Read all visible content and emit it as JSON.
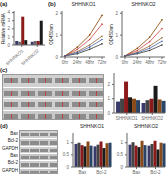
{
  "chart_data": [
    {
      "type": "bar",
      "annotations": [
        "(a)"
      ],
      "ylabel": "Relative mRNA",
      "categories": [
        "SHHNKO1",
        "SHHNKO2"
      ],
      "series": [
        {
          "color": "#3a3a6a",
          "values": [
            0.5,
            0.4
          ]
        },
        {
          "color": "#6a6a6a",
          "values": [
            0.4,
            0.5
          ]
        },
        {
          "color": "#8b1a1a",
          "values": [
            3.5,
            0.5
          ]
        },
        {
          "color": "#1a1a1a",
          "values": [
            0.6,
            3.0
          ]
        }
      ],
      "ylim": [
        0,
        4.2
      ],
      "yticks": [
        0,
        1,
        2,
        3,
        4
      ]
    },
    {
      "type": "line",
      "annotations": [
        "(b)"
      ],
      "title": "SHHNKO1",
      "ylabel": "OD450nm",
      "categories": [
        "0hr",
        "24hr",
        "48hr",
        "72hr"
      ],
      "marker": "circle",
      "series": [
        {
          "color": "#333333",
          "values": [
            0.05,
            0.15,
            0.35,
            0.6
          ]
        },
        {
          "color": "#996633",
          "values": [
            0.05,
            0.25,
            0.55,
            0.95
          ]
        },
        {
          "color": "#cc4444",
          "values": [
            0.05,
            0.35,
            0.8,
            1.5
          ]
        },
        {
          "color": "#884400",
          "values": [
            0.05,
            0.45,
            1.0,
            1.9
          ]
        },
        {
          "color": "#4466aa",
          "values": [
            0.05,
            0.2,
            0.45,
            0.8
          ]
        }
      ],
      "ylim": [
        0,
        2.1
      ],
      "yticks": [
        0,
        1,
        2
      ]
    },
    {
      "type": "line",
      "title": "SHHNKO2",
      "ylabel": "OD450nm",
      "categories": [
        "0hr",
        "24hr",
        "48hr",
        "72hr"
      ],
      "marker": "circle",
      "series": [
        {
          "color": "#333333",
          "values": [
            0.05,
            0.15,
            0.3,
            0.55
          ]
        },
        {
          "color": "#996633",
          "values": [
            0.05,
            0.22,
            0.5,
            0.88
          ]
        },
        {
          "color": "#cc4444",
          "values": [
            0.05,
            0.3,
            0.7,
            1.3
          ]
        },
        {
          "color": "#884400",
          "values": [
            0.05,
            0.4,
            0.9,
            1.7
          ]
        },
        {
          "color": "#4466aa",
          "values": [
            0.05,
            0.18,
            0.4,
            0.72
          ]
        }
      ],
      "ylim": [
        0,
        2.1
      ],
      "yticks": [
        0,
        1,
        2
      ]
    },
    {
      "type": "blot",
      "annotations": [
        "(c)"
      ],
      "rows": 4,
      "columns": 6
    },
    {
      "type": "bar",
      "categories": [
        "SHHNKO1",
        "SHHNKO2"
      ],
      "series": [
        {
          "color": "#3a3a6a",
          "values": [
            0.8,
            0.7
          ]
        },
        {
          "color": "#444444",
          "values": [
            1.0,
            0.9
          ]
        },
        {
          "color": "#8b1a1a",
          "values": [
            2.2,
            1.0
          ]
        },
        {
          "color": "#1a1a1a",
          "values": [
            1.1,
            1.9
          ]
        },
        {
          "color": "#8b4a1a",
          "values": [
            1.0,
            0.95
          ]
        },
        {
          "color": "#2a4466",
          "values": [
            0.9,
            0.85
          ]
        }
      ],
      "ylim": [
        0,
        2.8
      ],
      "yticks": [
        0,
        1,
        2
      ]
    },
    {
      "type": "blot",
      "annotations": [
        "(d)"
      ],
      "row_labels": [
        "Bax",
        "Bcl-2",
        "GAPDH",
        "Bax",
        "Bcl-2",
        "GAPDH"
      ],
      "columns": 4
    },
    {
      "type": "bar",
      "title": "SHHNKO1",
      "categories": [
        "Bax",
        "Bcl-2"
      ],
      "series": [
        {
          "color": "#3a3a6a",
          "values": [
            0.95,
            0.85
          ]
        },
        {
          "color": "#444444",
          "values": [
            1.0,
            0.92
          ]
        },
        {
          "color": "#8b1a1a",
          "values": [
            0.9,
            1.05
          ]
        },
        {
          "color": "#1a1a1a",
          "values": [
            0.85,
            0.78
          ]
        },
        {
          "color": "#8b4a1a",
          "values": [
            1.05,
            0.98
          ]
        },
        {
          "color": "#2a4466",
          "values": [
            0.88,
            1.0
          ]
        }
      ],
      "ylim": [
        0,
        1.4
      ],
      "yticks": [
        0,
        0.5,
        1
      ]
    },
    {
      "type": "bar",
      "title": "SHHNKO2",
      "categories": [
        "Bax",
        "Bcl-2"
      ],
      "series": [
        {
          "color": "#3a3a6a",
          "values": [
            0.92,
            0.88
          ]
        },
        {
          "color": "#444444",
          "values": [
            1.02,
            0.95
          ]
        },
        {
          "color": "#8b1a1a",
          "values": [
            0.88,
            1.08
          ]
        },
        {
          "color": "#1a1a1a",
          "values": [
            0.82,
            0.72
          ]
        },
        {
          "color": "#8b4a1a",
          "values": [
            1.08,
            1.0
          ]
        },
        {
          "color": "#2a4466",
          "values": [
            0.9,
            0.97
          ]
        }
      ],
      "ylim": [
        0,
        1.4
      ],
      "yticks": [
        0,
        0.5,
        1
      ]
    }
  ]
}
